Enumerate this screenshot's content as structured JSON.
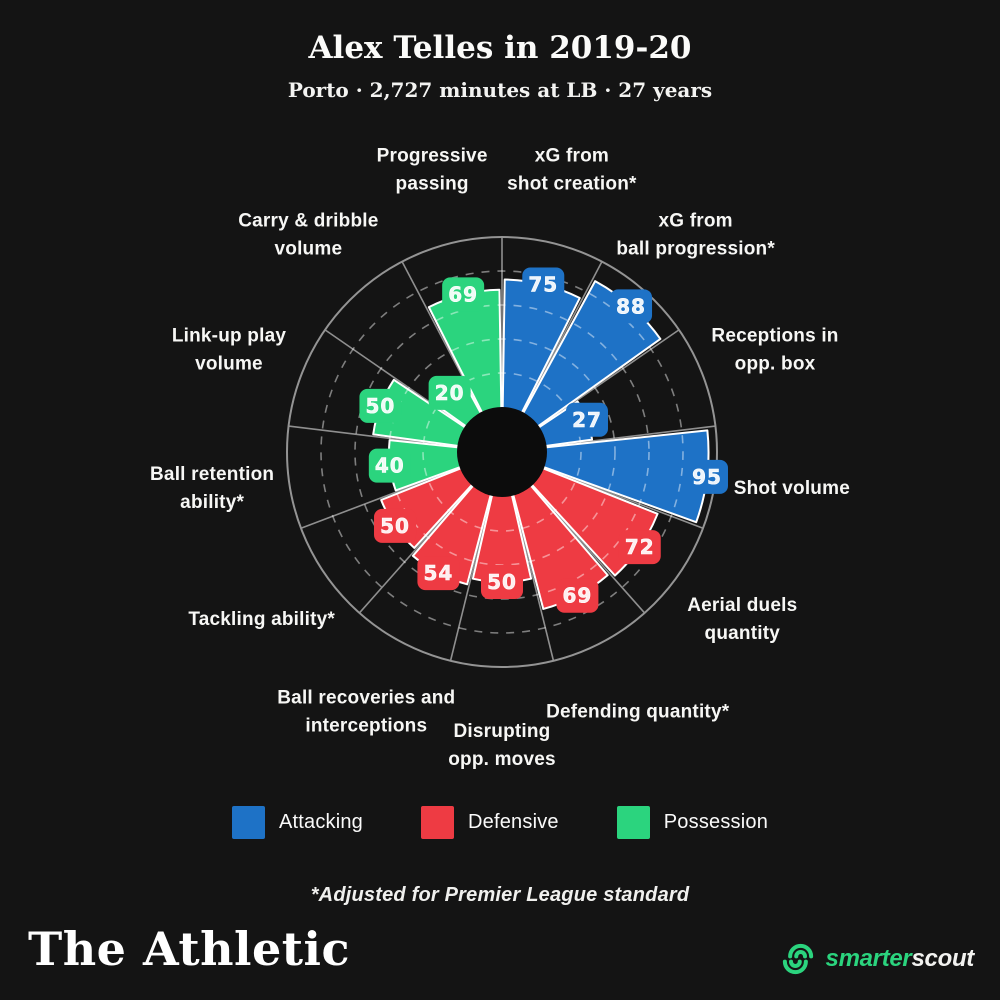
{
  "header": {
    "title": "Alex Telles in 2019-20",
    "subtitle": "Porto · 2,727 minutes at LB · 27 years"
  },
  "chart_data": {
    "type": "polar_bar",
    "title": "Alex Telles in 2019-20",
    "direction": "clockwise",
    "start_angle_deg": 0,
    "rlim": [
      0,
      100
    ],
    "grid_circles": [
      20,
      40,
      60,
      80
    ],
    "outer_ring_value": 100,
    "grid": "dashed-circles-with-radial-lines",
    "categories": [
      {
        "name": "Attacking",
        "color": "#1e72c6"
      },
      {
        "name": "Defensive",
        "color": "#ee3b43"
      },
      {
        "name": "Possession",
        "color": "#2bd47e"
      }
    ],
    "segments": [
      {
        "label_lines": [
          "xG from",
          "shot creation*"
        ],
        "value": 75,
        "category": "Attacking"
      },
      {
        "label_lines": [
          "xG from",
          "ball progression*"
        ],
        "value": 88,
        "category": "Attacking"
      },
      {
        "label_lines": [
          "Receptions in",
          "opp. box"
        ],
        "value": 27,
        "category": "Attacking"
      },
      {
        "label_lines": [
          "Shot volume"
        ],
        "value": 95,
        "category": "Attacking"
      },
      {
        "label_lines": [
          "Aerial duels",
          "quantity"
        ],
        "value": 72,
        "category": "Defensive"
      },
      {
        "label_lines": [
          "Defending quantity*"
        ],
        "value": 69,
        "category": "Defensive"
      },
      {
        "label_lines": [
          "Disrupting",
          "opp. moves"
        ],
        "value": 50,
        "category": "Defensive"
      },
      {
        "label_lines": [
          "Ball recoveries and",
          "interceptions"
        ],
        "value": 54,
        "category": "Defensive"
      },
      {
        "label_lines": [
          "Tackling ability*"
        ],
        "value": 50,
        "category": "Defensive"
      },
      {
        "label_lines": [
          "Ball retention",
          "ability*"
        ],
        "value": 40,
        "category": "Possession"
      },
      {
        "label_lines": [
          "Link-up play",
          "volume"
        ],
        "value": 50,
        "category": "Possession"
      },
      {
        "label_lines": [
          "Carry & dribble",
          "volume"
        ],
        "value": 20,
        "category": "Possession"
      },
      {
        "label_lines": [
          "Progressive",
          "passing"
        ],
        "value": 69,
        "category": "Possession"
      }
    ]
  },
  "legend": {
    "items": [
      {
        "label": "Attacking",
        "color": "#1e72c6"
      },
      {
        "label": "Defensive",
        "color": "#ee3b43"
      },
      {
        "label": "Possession",
        "color": "#2bd47e"
      }
    ]
  },
  "footnote": {
    "text": "*Adjusted for Premier League standard"
  },
  "footer": {
    "brand": "The Athletic",
    "partner": {
      "prefix": "smarter",
      "suffix": "scout"
    }
  }
}
